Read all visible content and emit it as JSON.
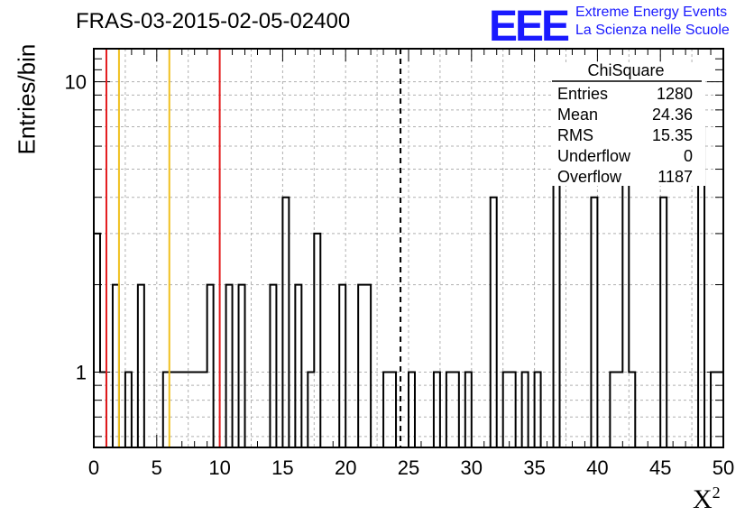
{
  "title": "FRAS-03-2015-02-05-02400",
  "logo": {
    "mark": "EEE",
    "line1": "Extreme Energy Events",
    "line2": "La Scienza nelle Scuole",
    "color": "#1a1aff"
  },
  "chart_data": {
    "type": "bar",
    "subtype": "histogram-step",
    "xlabel": "X",
    "xlabel_sup": "2",
    "ylabel": "Entries/bin",
    "xlim": [
      0,
      50
    ],
    "ylim": [
      0.55,
      13
    ],
    "yscale": "log",
    "bin_width": 0.5,
    "grid": true,
    "x_ticks": [
      "0",
      "5",
      "10",
      "15",
      "20",
      "25",
      "30",
      "35",
      "40",
      "45",
      "50"
    ],
    "y_ticks": [
      "1",
      "10"
    ],
    "bins": [
      {
        "x": 0.0,
        "y": 3
      },
      {
        "x": 0.5,
        "y": 1
      },
      {
        "x": 1.5,
        "y": 2
      },
      {
        "x": 2.5,
        "y": 1
      },
      {
        "x": 3.5,
        "y": 2
      },
      {
        "x": 5.5,
        "y": 1
      },
      {
        "x": 6.0,
        "y": 1
      },
      {
        "x": 6.5,
        "y": 1
      },
      {
        "x": 7.0,
        "y": 1
      },
      {
        "x": 7.5,
        "y": 1
      },
      {
        "x": 8.0,
        "y": 1
      },
      {
        "x": 8.5,
        "y": 1
      },
      {
        "x": 9.0,
        "y": 2
      },
      {
        "x": 10.5,
        "y": 2
      },
      {
        "x": 11.5,
        "y": 2
      },
      {
        "x": 14.0,
        "y": 2
      },
      {
        "x": 15.0,
        "y": 4
      },
      {
        "x": 16.0,
        "y": 2
      },
      {
        "x": 17.0,
        "y": 1
      },
      {
        "x": 17.5,
        "y": 3
      },
      {
        "x": 19.5,
        "y": 2
      },
      {
        "x": 21.0,
        "y": 2
      },
      {
        "x": 21.5,
        "y": 2
      },
      {
        "x": 23.0,
        "y": 1
      },
      {
        "x": 23.5,
        "y": 1
      },
      {
        "x": 25.0,
        "y": 1
      },
      {
        "x": 27.0,
        "y": 1
      },
      {
        "x": 28.0,
        "y": 1
      },
      {
        "x": 28.5,
        "y": 1
      },
      {
        "x": 29.5,
        "y": 1
      },
      {
        "x": 31.5,
        "y": 4
      },
      {
        "x": 32.5,
        "y": 1
      },
      {
        "x": 33.0,
        "y": 1
      },
      {
        "x": 34.0,
        "y": 1
      },
      {
        "x": 35.0,
        "y": 1
      },
      {
        "x": 36.5,
        "y": 6
      },
      {
        "x": 39.5,
        "y": 4
      },
      {
        "x": 41.0,
        "y": 1
      },
      {
        "x": 41.5,
        "y": 1
      },
      {
        "x": 42.0,
        "y": 7
      },
      {
        "x": 42.5,
        "y": 1
      },
      {
        "x": 45.0,
        "y": 4
      },
      {
        "x": 48.0,
        "y": 7
      },
      {
        "x": 49.0,
        "y": 1
      },
      {
        "x": 49.5,
        "y": 1
      }
    ],
    "vertical_lines": [
      {
        "x": 1.0,
        "color": "#e31a1c",
        "style": "solid"
      },
      {
        "x": 2.0,
        "color": "#f0c020",
        "style": "solid"
      },
      {
        "x": 6.0,
        "color": "#f0c020",
        "style": "solid"
      },
      {
        "x": 10.0,
        "color": "#e31a1c",
        "style": "solid"
      },
      {
        "x": 24.36,
        "color": "#000000",
        "style": "dashed"
      }
    ],
    "stats": {
      "name": "ChiSquare",
      "rows": [
        {
          "label": "Entries",
          "value": "1280"
        },
        {
          "label": "Mean",
          "value": "24.36"
        },
        {
          "label": "RMS",
          "value": "15.35"
        },
        {
          "label": "Underflow",
          "value": "0"
        },
        {
          "label": "Overflow",
          "value": "1187"
        }
      ]
    }
  }
}
